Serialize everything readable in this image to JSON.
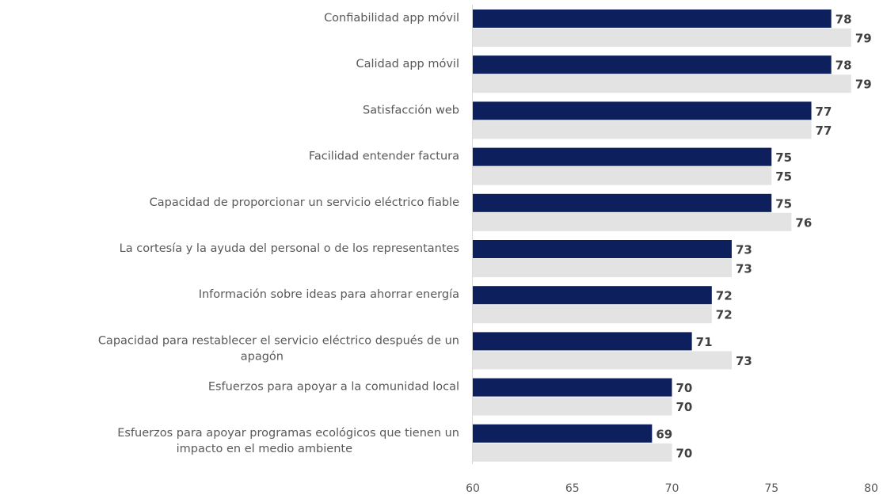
{
  "chart_data": {
    "type": "bar",
    "orientation": "horizontal",
    "categories": [
      "Confiabilidad app móvil",
      "Calidad app móvil",
      "Satisfacción web",
      "Facilidad entender factura",
      "Capacidad de proporcionar un servicio eléctrico fiable",
      "La cortesía y la ayuda del personal o de los representantes",
      "Información sobre ideas para ahorrar energía",
      "Capacidad para restablecer el servicio eléctrico después de un apagón",
      "Esfuerzos para apoyar a la comunidad local",
      "Esfuerzos para apoyar programas ecológicos que tienen un impacto en el medio ambiente"
    ],
    "category_lines": [
      [
        "Confiabilidad app móvil"
      ],
      [
        "Calidad app móvil"
      ],
      [
        "Satisfacción web"
      ],
      [
        "Facilidad entender factura"
      ],
      [
        "Capacidad de proporcionar un servicio eléctrico fiable"
      ],
      [
        "La cortesía y la ayuda del personal o de los representantes"
      ],
      [
        "Información sobre ideas para ahorrar energía"
      ],
      [
        "Capacidad para restablecer el servicio eléctrico después de un",
        "apagón"
      ],
      [
        "Esfuerzos para apoyar a la comunidad local"
      ],
      [
        "Esfuerzos para apoyar programas ecológicos que tienen un",
        "impacto en el medio ambiente"
      ]
    ],
    "series": [
      {
        "values": [
          78,
          78,
          77,
          75,
          75,
          73,
          72,
          71,
          70,
          69
        ],
        "color": "#0d1f5c"
      },
      {
        "values": [
          79,
          79,
          77,
          75,
          76,
          73,
          72,
          73,
          70,
          70
        ],
        "color": "#e3e3e3"
      }
    ],
    "xlim": [
      60,
      80
    ],
    "xticks": [
      60,
      65,
      70,
      75,
      80
    ],
    "xlabel": "",
    "ylabel": "",
    "title": "",
    "grid": false,
    "data_labels": true
  }
}
